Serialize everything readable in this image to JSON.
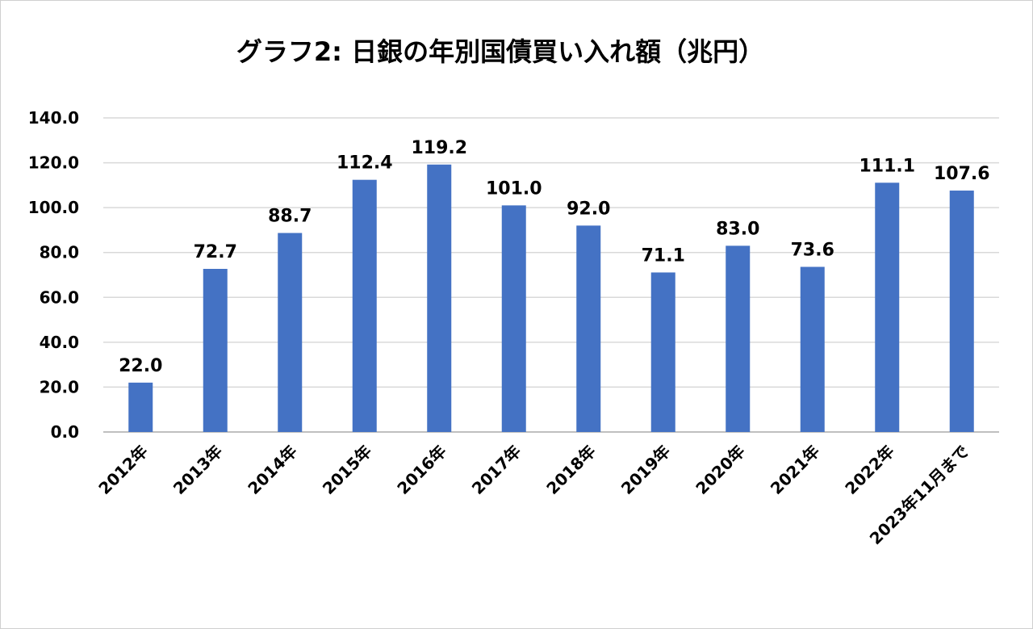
{
  "chart_data": {
    "type": "bar",
    "title": "グラフ2: 日銀の年別国債買い入れ額（兆円）",
    "categories": [
      "2012年",
      "2013年",
      "2014年",
      "2015年",
      "2016年",
      "2017年",
      "2018年",
      "2019年",
      "2020年",
      "2021年",
      "2022年",
      "2023年11月まで"
    ],
    "values": [
      22.0,
      72.7,
      88.7,
      112.4,
      119.2,
      101.0,
      92.0,
      71.1,
      83.0,
      73.6,
      111.1,
      107.6
    ],
    "value_labels": [
      "22.0",
      "72.7",
      "88.7",
      "112.4",
      "119.2",
      "101.0",
      "92.0",
      "71.1",
      "83.0",
      "73.6",
      "111.1",
      "107.6"
    ],
    "xlabel": "",
    "ylabel": "",
    "ylim": [
      0,
      140
    ],
    "yticks": [
      "0.0",
      "20.0",
      "40.0",
      "60.0",
      "80.0",
      "100.0",
      "120.0",
      "140.0"
    ],
    "grid": true,
    "bar_color": "#4472C4",
    "grid_color": "#d9d9d9"
  }
}
